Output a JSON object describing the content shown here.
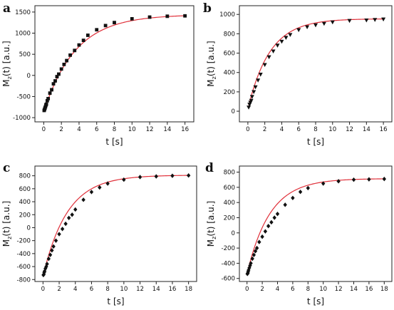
{
  "chart_data": [
    {
      "type": "scatter",
      "panel": "a",
      "xlabel": "t [s]",
      "ylabel": "M_z(t) [a.u.]",
      "xlim": [
        -1,
        17
      ],
      "ylim": [
        -1100,
        1650
      ],
      "xticks": [
        0,
        2,
        4,
        6,
        8,
        10,
        12,
        14,
        16
      ],
      "yticks": [
        -1000,
        -500,
        0,
        500,
        1000,
        1500
      ],
      "marker": "square",
      "fit": {
        "model": "exponential recovery",
        "A": 1440,
        "B": 2300,
        "T1": 3.6
      },
      "x": [
        0.05,
        0.1,
        0.15,
        0.2,
        0.25,
        0.3,
        0.4,
        0.5,
        0.7,
        0.9,
        1.1,
        1.3,
        1.5,
        1.7,
        2.0,
        2.3,
        2.6,
        3.0,
        3.5,
        4.0,
        4.5,
        5.0,
        6.0,
        7.0,
        8.0,
        10.0,
        12.0,
        14.0,
        16.0
      ],
      "y": [
        -830,
        -800,
        -770,
        -740,
        -700,
        -680,
        -600,
        -550,
        -420,
        -340,
        -200,
        -130,
        -30,
        30,
        150,
        260,
        350,
        480,
        590,
        720,
        830,
        950,
        1080,
        1180,
        1250,
        1340,
        1380,
        1400,
        1410
      ]
    },
    {
      "type": "scatter",
      "panel": "b",
      "xlabel": "t [s]",
      "ylabel": "M_z(t) [a.u.]",
      "xlim": [
        -1,
        17
      ],
      "ylim": [
        -110,
        1090
      ],
      "xticks": [
        0,
        2,
        4,
        6,
        8,
        10,
        12,
        14,
        16
      ],
      "yticks": [
        0,
        200,
        400,
        600,
        800,
        1000
      ],
      "marker": "triangle-down",
      "fit": {
        "model": "exponential recovery",
        "A": 955,
        "B": 930,
        "T1": 2.6
      },
      "x": [
        0.1,
        0.2,
        0.3,
        0.4,
        0.5,
        0.7,
        0.9,
        1.2,
        1.5,
        2.0,
        2.5,
        3.0,
        3.5,
        4.0,
        4.5,
        5.0,
        6.0,
        7.0,
        8.0,
        9.0,
        10.0,
        12.0,
        14.0,
        15.0,
        16.0
      ],
      "y": [
        40,
        70,
        90,
        110,
        150,
        200,
        250,
        320,
        380,
        480,
        560,
        620,
        680,
        720,
        760,
        790,
        840,
        870,
        890,
        905,
        920,
        935,
        940,
        945,
        950
      ]
    },
    {
      "type": "scatter",
      "panel": "c",
      "xlabel": "t [s]",
      "ylabel": "M_z(t) [a.u.]",
      "xlim": [
        -1,
        19
      ],
      "ylim": [
        -830,
        950
      ],
      "xticks": [
        0,
        2,
        4,
        6,
        8,
        10,
        12,
        14,
        16,
        18
      ],
      "yticks": [
        -800,
        -600,
        -400,
        -200,
        0,
        200,
        400,
        600,
        800
      ],
      "marker": "diamond",
      "fit": {
        "model": "exponential recovery",
        "A": 810,
        "B": 1560,
        "T1": 3.0
      },
      "x": [
        0.05,
        0.1,
        0.15,
        0.2,
        0.3,
        0.4,
        0.5,
        0.7,
        0.9,
        1.1,
        1.3,
        1.6,
        2.0,
        2.4,
        2.8,
        3.2,
        3.6,
        4.0,
        5.0,
        6.0,
        7.0,
        8.0,
        10.0,
        12.0,
        14.0,
        16.0,
        18.0
      ],
      "y": [
        -730,
        -720,
        -690,
        -670,
        -630,
        -600,
        -560,
        -480,
        -420,
        -350,
        -290,
        -200,
        -100,
        -20,
        60,
        150,
        200,
        280,
        430,
        550,
        620,
        680,
        740,
        780,
        790,
        800,
        805
      ]
    },
    {
      "type": "scatter",
      "panel": "d",
      "xlabel": "t [s]",
      "ylabel": "M_z(t) [a.u.]",
      "xlim": [
        -1,
        19
      ],
      "ylim": [
        -640,
        880
      ],
      "xticks": [
        0,
        2,
        4,
        6,
        8,
        10,
        12,
        14,
        16,
        18
      ],
      "yticks": [
        -600,
        -400,
        -200,
        0,
        200,
        400,
        600,
        800
      ],
      "marker": "diamond",
      "fit": {
        "model": "exponential recovery",
        "A": 715,
        "B": 1255,
        "T1": 3.0
      },
      "x": [
        0.05,
        0.1,
        0.15,
        0.2,
        0.3,
        0.4,
        0.5,
        0.7,
        0.9,
        1.1,
        1.3,
        1.6,
        2.0,
        2.4,
        2.8,
        3.2,
        3.6,
        4.0,
        5.0,
        6.0,
        7.0,
        8.0,
        10.0,
        12.0,
        14.0,
        16.0,
        18.0
      ],
      "y": [
        -540,
        -530,
        -510,
        -490,
        -460,
        -430,
        -400,
        -340,
        -290,
        -240,
        -200,
        -120,
        -50,
        20,
        90,
        140,
        200,
        250,
        370,
        460,
        540,
        590,
        650,
        680,
        700,
        705,
        710
      ]
    }
  ]
}
